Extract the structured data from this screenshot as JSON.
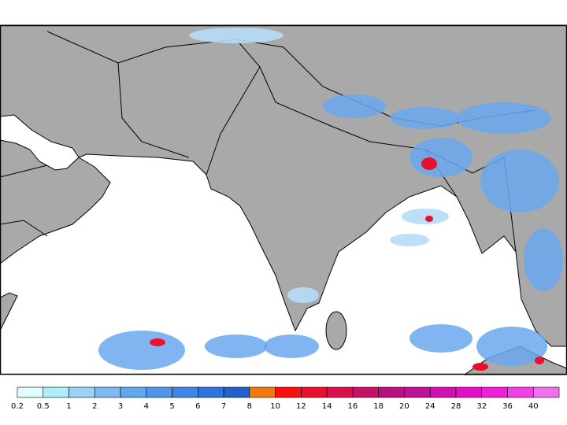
{
  "colorbar": {
    "ticks": [
      0.2,
      0.5,
      1,
      2,
      3,
      4,
      5,
      6,
      7,
      8,
      10,
      12,
      14,
      16,
      18,
      20,
      24,
      28,
      32,
      36,
      40
    ],
    "colors": [
      "#e0fcfc",
      "#aeeef4",
      "#9ad3f5",
      "#7ebaf2",
      "#62a6ee",
      "#4f96ea",
      "#3f86e4",
      "#2f74dc",
      "#2260cc",
      "#f07a10",
      "#f81010",
      "#e8102c",
      "#d8104a",
      "#c81068",
      "#b81080",
      "#c0109a",
      "#d010b0",
      "#e010c8",
      "#f020d8",
      "#f040e8",
      "#f070f0"
    ]
  }
}
